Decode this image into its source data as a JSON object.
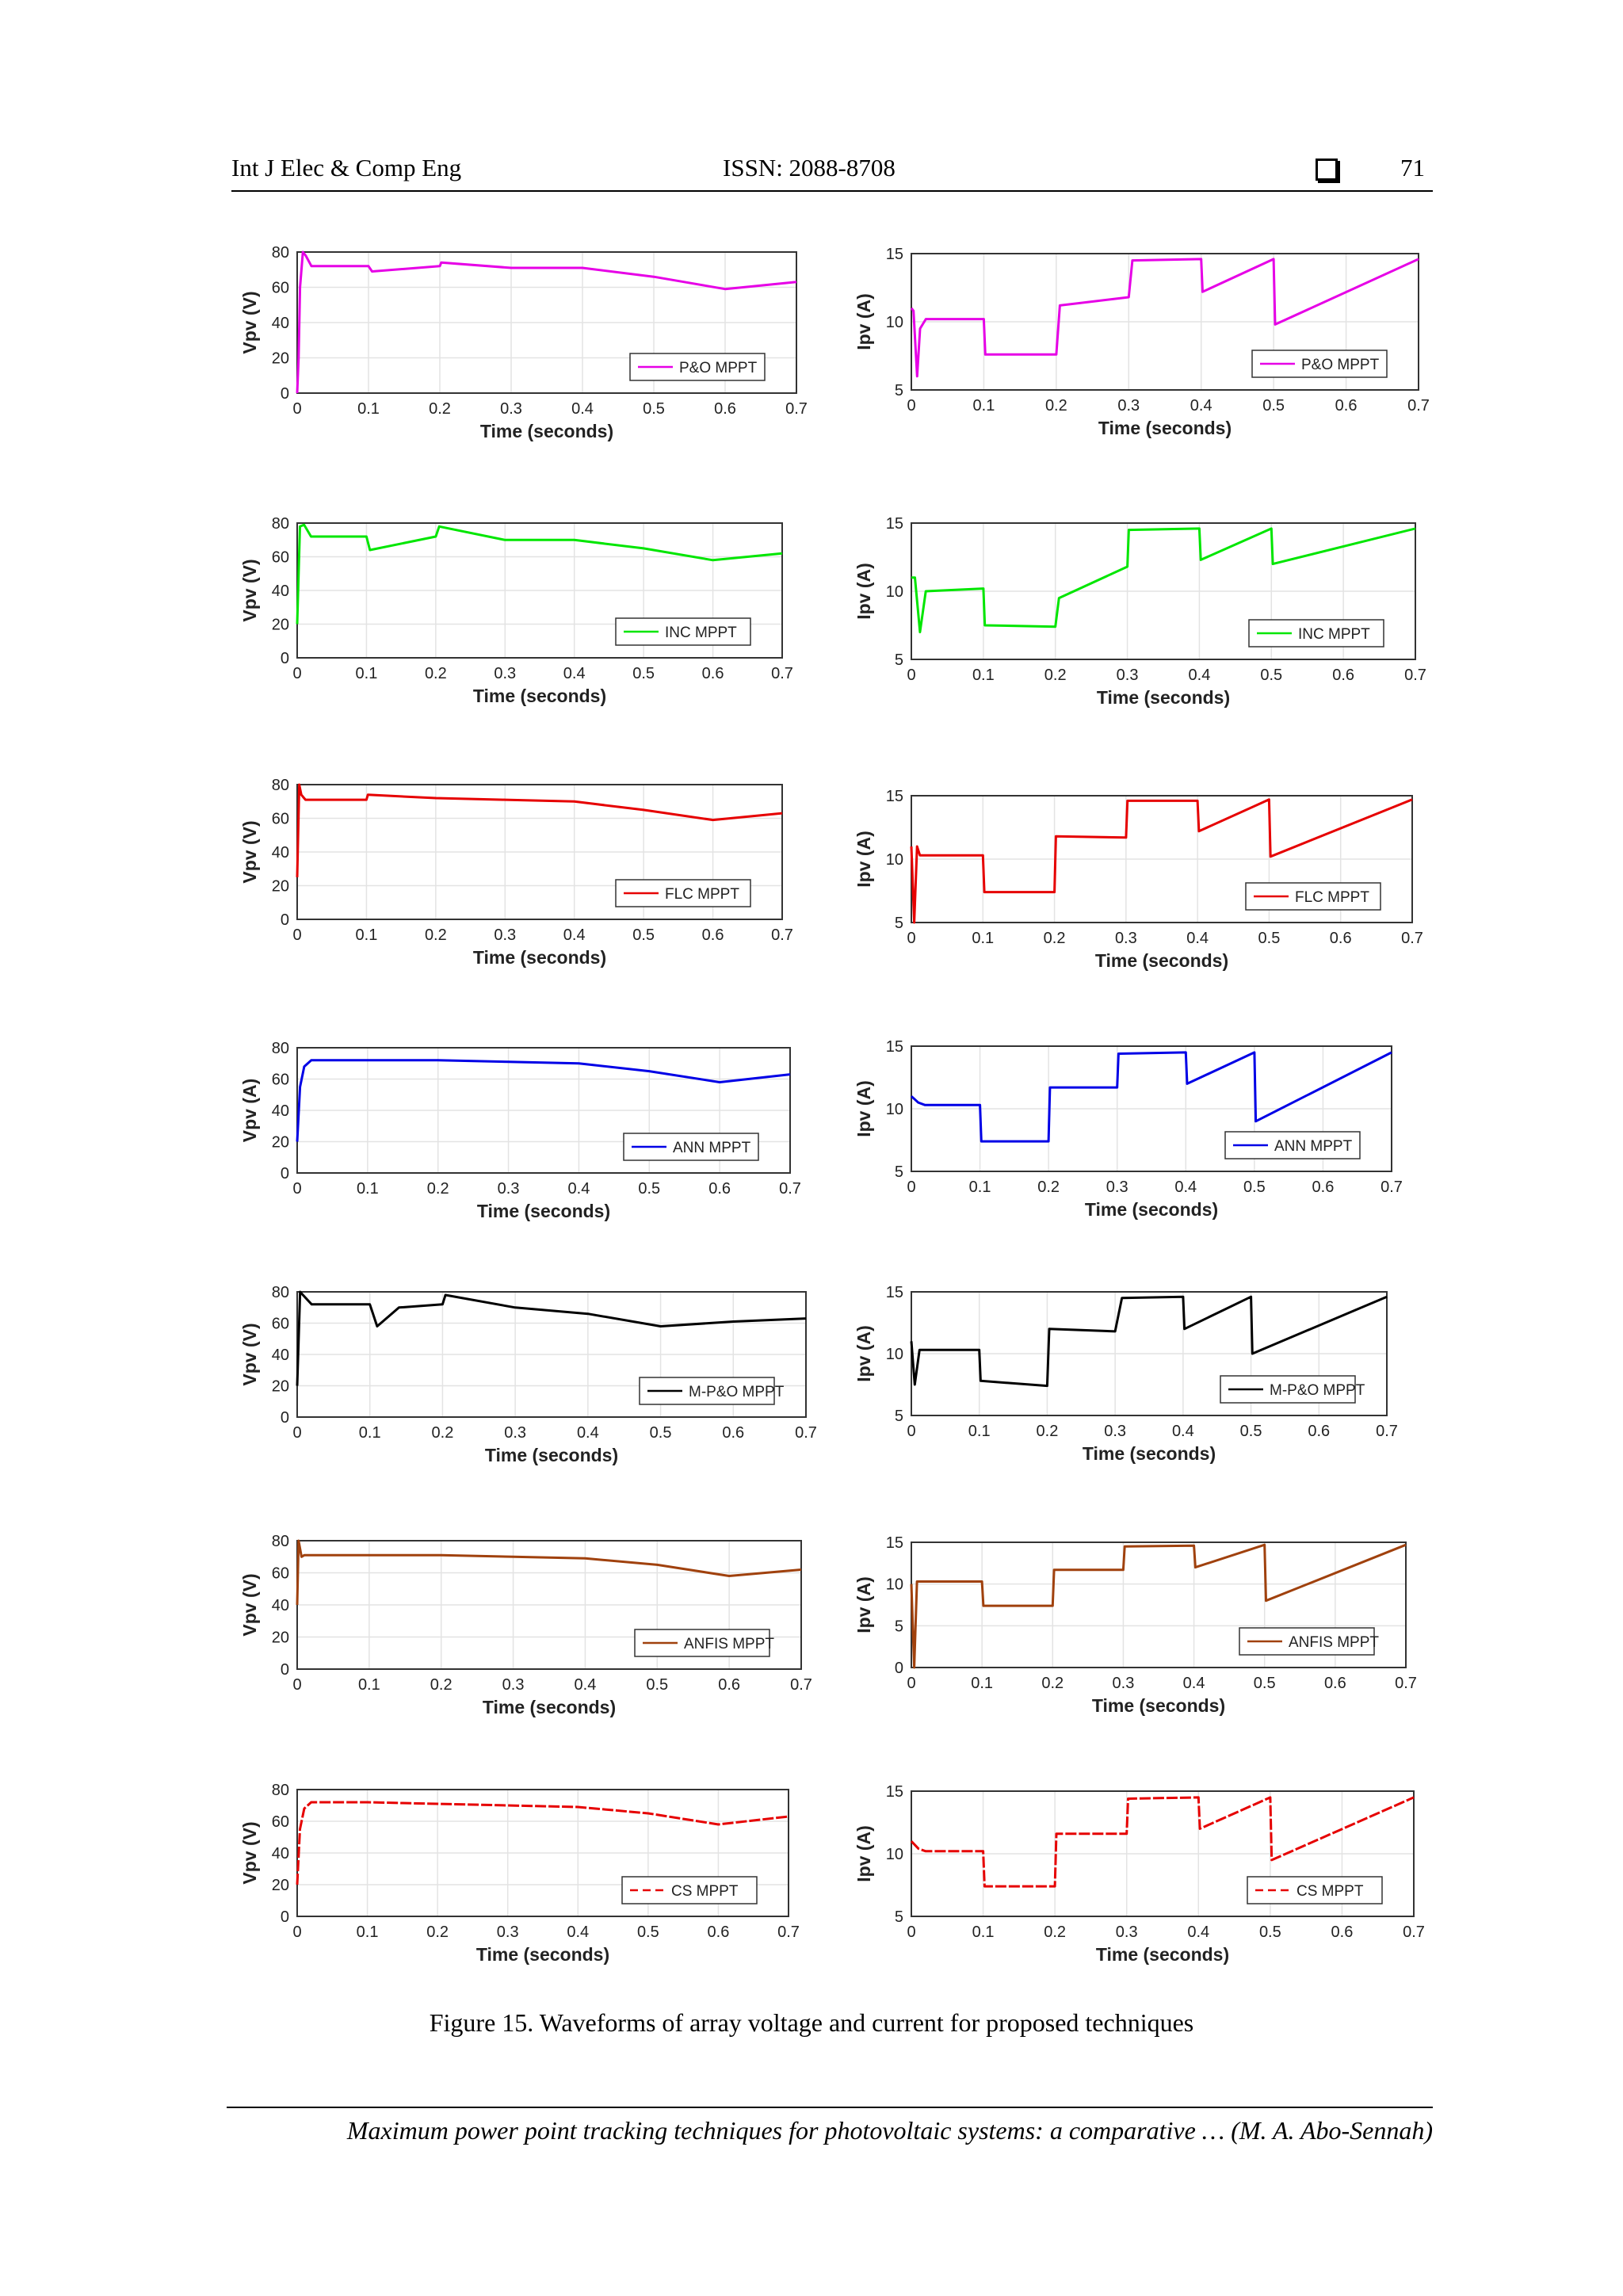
{
  "header": {
    "journal": "Int J Elec & Comp Eng",
    "issn": "ISSN: 2088-8708",
    "page_number": "71"
  },
  "caption": "Figure 15. Waveforms of array voltage and current for proposed techniques",
  "footer": "Maximum power point tracking techniques for photovoltaic systems: a comparative … (M. A. Abo-Sennah)",
  "chart_data": [
    {
      "type": "line",
      "method": "P&O",
      "quantity": "voltage",
      "color": "#e600e6",
      "ylabel": "Vpv (V)",
      "xlabel": "Time (seconds)",
      "xlim": [
        0,
        0.7
      ],
      "ylim": [
        0,
        80
      ],
      "xticks": [
        "0",
        "0.1",
        "0.2",
        "0.3",
        "0.4",
        "0.5",
        "0.6",
        "0.7"
      ],
      "yticks": [
        "0",
        "20",
        "40",
        "60",
        "80"
      ],
      "legend": "P&O MPPT",
      "legend_position": "bottom-right",
      "grid": true,
      "series": [
        {
          "name": "P&O MPPT",
          "x": [
            0,
            0.002,
            0.004,
            0.008,
            0.012,
            0.02,
            0.1,
            0.105,
            0.2,
            0.202,
            0.3,
            0.4,
            0.5,
            0.6,
            0.7
          ],
          "y": [
            0,
            20,
            60,
            80,
            78,
            72,
            72,
            69,
            72,
            74,
            71,
            71,
            66,
            59,
            63
          ]
        }
      ]
    },
    {
      "type": "line",
      "method": "P&O",
      "quantity": "current",
      "color": "#e600e6",
      "ylabel": "Ipv (A)",
      "xlabel": "Time (seconds)",
      "xlim": [
        0,
        0.7
      ],
      "ylim": [
        5,
        15
      ],
      "xticks": [
        "0",
        "0.1",
        "0.2",
        "0.3",
        "0.4",
        "0.5",
        "0.6",
        "0.7"
      ],
      "yticks": [
        "5",
        "10",
        "15"
      ],
      "legend": "P&O MPPT",
      "legend_position": "bottom-right",
      "grid": true,
      "series": [
        {
          "name": "P&O MPPT",
          "x": [
            0,
            0.003,
            0.008,
            0.012,
            0.02,
            0.1,
            0.102,
            0.2,
            0.205,
            0.3,
            0.305,
            0.4,
            0.402,
            0.5,
            0.502,
            0.7
          ],
          "y": [
            11,
            10.8,
            6,
            9.5,
            10.2,
            10.2,
            7.6,
            7.6,
            11.2,
            11.8,
            14.5,
            14.6,
            12.2,
            14.6,
            9.8,
            14.6
          ]
        }
      ]
    },
    {
      "type": "line",
      "method": "INC",
      "quantity": "voltage",
      "color": "#00e600",
      "ylabel": "Vpv (V)",
      "xlabel": "Time (seconds)",
      "xlim": [
        0,
        0.7
      ],
      "ylim": [
        0,
        80
      ],
      "xticks": [
        "0",
        "0.1",
        "0.2",
        "0.3",
        "0.4",
        "0.5",
        "0.6",
        "0.7"
      ],
      "yticks": [
        "0",
        "20",
        "40",
        "60",
        "80"
      ],
      "legend": "INC MPPT",
      "legend_position": "bottom-right",
      "grid": true,
      "series": [
        {
          "name": "INC MPPT",
          "x": [
            0,
            0.004,
            0.01,
            0.02,
            0.1,
            0.105,
            0.2,
            0.205,
            0.3,
            0.4,
            0.5,
            0.6,
            0.7
          ],
          "y": [
            20,
            78,
            79,
            72,
            72,
            64,
            72,
            78,
            70,
            70,
            65,
            58,
            62
          ]
        }
      ]
    },
    {
      "type": "line",
      "method": "INC",
      "quantity": "current",
      "color": "#00e600",
      "ylabel": "Ipv (A)",
      "xlabel": "Time (seconds)",
      "xlim": [
        0,
        0.7
      ],
      "ylim": [
        5,
        15
      ],
      "xticks": [
        "0",
        "0.1",
        "0.2",
        "0.3",
        "0.4",
        "0.5",
        "0.6",
        "0.7"
      ],
      "yticks": [
        "5",
        "10",
        "15"
      ],
      "legend": "INC MPPT",
      "legend_position": "bottom-right",
      "grid": true,
      "series": [
        {
          "name": "INC MPPT",
          "x": [
            0,
            0.005,
            0.012,
            0.02,
            0.1,
            0.102,
            0.2,
            0.205,
            0.3,
            0.302,
            0.4,
            0.402,
            0.5,
            0.502,
            0.7
          ],
          "y": [
            11,
            11,
            7,
            10,
            10.2,
            7.5,
            7.4,
            9.5,
            11.8,
            14.5,
            14.6,
            12.3,
            14.6,
            12,
            14.6
          ]
        }
      ]
    },
    {
      "type": "line",
      "method": "FLC",
      "quantity": "voltage",
      "color": "#e60000",
      "ylabel": "Vpv (V)",
      "xlabel": "Time (seconds)",
      "xlim": [
        0,
        0.7
      ],
      "ylim": [
        0,
        80
      ],
      "xticks": [
        "0",
        "0.1",
        "0.2",
        "0.3",
        "0.4",
        "0.5",
        "0.6",
        "0.7"
      ],
      "yticks": [
        "0",
        "20",
        "40",
        "60",
        "80"
      ],
      "legend": "FLC MPPT",
      "legend_position": "bottom-right",
      "grid": true,
      "series": [
        {
          "name": "FLC MPPT",
          "x": [
            0,
            0.003,
            0.006,
            0.012,
            0.02,
            0.1,
            0.102,
            0.2,
            0.3,
            0.4,
            0.5,
            0.6,
            0.7
          ],
          "y": [
            25,
            80,
            74,
            71,
            71,
            71,
            74,
            72,
            71,
            70,
            65,
            59,
            63
          ]
        }
      ]
    },
    {
      "type": "line",
      "method": "FLC",
      "quantity": "current",
      "color": "#e60000",
      "ylabel": "Ipv (A)",
      "xlabel": "Time (seconds)",
      "xlim": [
        0,
        0.7
      ],
      "ylim": [
        5,
        15
      ],
      "xticks": [
        "0",
        "0.1",
        "0.2",
        "0.3",
        "0.4",
        "0.5",
        "0.6",
        "0.7"
      ],
      "yticks": [
        "5",
        "10",
        "15"
      ],
      "legend": "FLC MPPT",
      "legend_position": "bottom-right",
      "grid": true,
      "series": [
        {
          "name": "FLC MPPT",
          "x": [
            0,
            0.004,
            0.008,
            0.012,
            0.1,
            0.102,
            0.2,
            0.202,
            0.3,
            0.302,
            0.4,
            0.402,
            0.5,
            0.502,
            0.7
          ],
          "y": [
            11,
            5,
            11,
            10.3,
            10.3,
            7.4,
            7.4,
            11.8,
            11.7,
            14.6,
            14.6,
            12.2,
            14.7,
            10.2,
            14.7
          ]
        }
      ]
    },
    {
      "type": "line",
      "method": "ANN",
      "quantity": "voltage",
      "color": "#0000e6",
      "ylabel": "Vpv (A)",
      "xlabel": "Time (seconds)",
      "xlim": [
        0,
        0.7
      ],
      "ylim": [
        0,
        80
      ],
      "xticks": [
        "0",
        "0.1",
        "0.2",
        "0.3",
        "0.4",
        "0.5",
        "0.6",
        "0.7"
      ],
      "yticks": [
        "0",
        "20",
        "40",
        "60",
        "80"
      ],
      "legend": "ANN MPPT",
      "legend_position": "bottom-right",
      "grid": true,
      "series": [
        {
          "name": "ANN MPPT",
          "x": [
            0,
            0.004,
            0.01,
            0.02,
            0.1,
            0.2,
            0.3,
            0.4,
            0.5,
            0.6,
            0.7
          ],
          "y": [
            20,
            55,
            68,
            72,
            72,
            72,
            71,
            70,
            65,
            58,
            63
          ]
        }
      ]
    },
    {
      "type": "line",
      "method": "ANN",
      "quantity": "current",
      "color": "#0000e6",
      "ylabel": "Ipv (A)",
      "xlabel": "Time (seconds)",
      "xlim": [
        0,
        0.7
      ],
      "ylim": [
        5,
        15
      ],
      "xticks": [
        "0",
        "0.1",
        "0.2",
        "0.3",
        "0.4",
        "0.5",
        "0.6",
        "0.7"
      ],
      "yticks": [
        "5",
        "10",
        "15"
      ],
      "legend": "ANN MPPT",
      "legend_position": "bottom-right",
      "grid": true,
      "series": [
        {
          "name": "ANN MPPT",
          "x": [
            0,
            0.01,
            0.02,
            0.1,
            0.102,
            0.2,
            0.202,
            0.3,
            0.302,
            0.4,
            0.402,
            0.5,
            0.502,
            0.7
          ],
          "y": [
            11,
            10.5,
            10.3,
            10.3,
            7.4,
            7.4,
            11.7,
            11.7,
            14.4,
            14.5,
            12,
            14.5,
            9,
            14.5
          ]
        }
      ]
    },
    {
      "type": "line",
      "method": "M-P&O",
      "quantity": "voltage",
      "color": "#000000",
      "ylabel": "Vpv (V)",
      "xlabel": "Time (seconds)",
      "xlim": [
        0,
        0.7
      ],
      "ylim": [
        0,
        80
      ],
      "xticks": [
        "0",
        "0.1",
        "0.2",
        "0.3",
        "0.4",
        "0.5",
        "0.6",
        "0.7"
      ],
      "yticks": [
        "0",
        "20",
        "40",
        "60",
        "80"
      ],
      "legend": "M-P&O MPPT",
      "legend_position": "bottom-right",
      "grid": true,
      "series": [
        {
          "name": "M-P&O MPPT",
          "x": [
            0,
            0.004,
            0.008,
            0.02,
            0.1,
            0.11,
            0.14,
            0.2,
            0.204,
            0.3,
            0.4,
            0.5,
            0.6,
            0.7
          ],
          "y": [
            20,
            80,
            78,
            72,
            72,
            58,
            70,
            72,
            78,
            70,
            66,
            58,
            61,
            63
          ]
        }
      ]
    },
    {
      "type": "line",
      "method": "M-P&O",
      "quantity": "current",
      "color": "#000000",
      "ylabel": "Ipv (A)",
      "xlabel": "Time (seconds)",
      "xlim": [
        0,
        0.7
      ],
      "ylim": [
        5,
        15
      ],
      "xticks": [
        "0",
        "0.1",
        "0.2",
        "0.3",
        "0.4",
        "0.5",
        "0.6",
        "0.7"
      ],
      "yticks": [
        "5",
        "10",
        "15"
      ],
      "legend": "M-P&O MPPT",
      "legend_position": "bottom-right",
      "grid": true,
      "series": [
        {
          "name": "M-P&O MPPT",
          "x": [
            0,
            0.005,
            0.012,
            0.02,
            0.1,
            0.102,
            0.2,
            0.203,
            0.3,
            0.31,
            0.4,
            0.402,
            0.5,
            0.502,
            0.7
          ],
          "y": [
            11,
            7.5,
            10.3,
            10.3,
            10.3,
            7.8,
            7.4,
            12,
            11.8,
            14.5,
            14.6,
            12,
            14.6,
            10,
            14.6
          ]
        }
      ]
    },
    {
      "type": "line",
      "method": "ANFIS",
      "quantity": "voltage",
      "color": "#a0410d",
      "ylabel": "Vpv (V)",
      "xlabel": "Time (seconds)",
      "xlim": [
        0,
        0.7
      ],
      "ylim": [
        0,
        80
      ],
      "xticks": [
        "0",
        "0.1",
        "0.2",
        "0.3",
        "0.4",
        "0.5",
        "0.6",
        "0.7"
      ],
      "yticks": [
        "0",
        "20",
        "40",
        "60",
        "80"
      ],
      "legend": "ANFIS MPPT",
      "legend_position": "bottom-right",
      "grid": true,
      "series": [
        {
          "name": "ANFIS MPPT",
          "x": [
            0,
            0.002,
            0.006,
            0.01,
            0.1,
            0.2,
            0.3,
            0.4,
            0.5,
            0.6,
            0.7
          ],
          "y": [
            40,
            80,
            70,
            71,
            71,
            71,
            70,
            69,
            65,
            58,
            62
          ]
        }
      ]
    },
    {
      "type": "line",
      "method": "ANFIS",
      "quantity": "current",
      "color": "#a0410d",
      "ylabel": "Ipv (A)",
      "xlabel": "Time (seconds)",
      "xlim": [
        0,
        0.7
      ],
      "ylim": [
        0,
        15
      ],
      "xticks": [
        "0",
        "0.1",
        "0.2",
        "0.3",
        "0.4",
        "0.5",
        "0.6",
        "0.7"
      ],
      "yticks": [
        "0",
        "5",
        "10",
        "15"
      ],
      "legend": "ANFIS MPPT",
      "legend_position": "bottom-right",
      "grid": true,
      "series": [
        {
          "name": "ANFIS MPPT",
          "x": [
            0,
            0.004,
            0.008,
            0.01,
            0.1,
            0.102,
            0.2,
            0.202,
            0.3,
            0.302,
            0.4,
            0.402,
            0.5,
            0.502,
            0.7
          ],
          "y": [
            10,
            0,
            10.3,
            10.3,
            10.3,
            7.4,
            7.4,
            11.7,
            11.7,
            14.5,
            14.6,
            12,
            14.7,
            8,
            14.7
          ]
        }
      ]
    },
    {
      "type": "line",
      "method": "CS",
      "quantity": "voltage",
      "color": "#e60000",
      "ylabel": "Vpv (V)",
      "xlabel": "Time (seconds)",
      "xlim": [
        0,
        0.7
      ],
      "ylim": [
        0,
        80
      ],
      "xticks": [
        "0",
        "0.1",
        "0.2",
        "0.3",
        "0.4",
        "0.5",
        "0.6",
        "0.7"
      ],
      "yticks": [
        "0",
        "20",
        "40",
        "60",
        "80"
      ],
      "legend": "CS MPPT",
      "legend_position": "bottom-right",
      "grid": true,
      "series": [
        {
          "name": "CS MPPT",
          "x": [
            0,
            0.004,
            0.01,
            0.02,
            0.1,
            0.2,
            0.3,
            0.4,
            0.5,
            0.6,
            0.7
          ],
          "y": [
            20,
            55,
            68,
            72,
            72,
            71,
            70,
            69,
            65,
            58,
            63
          ]
        }
      ]
    },
    {
      "type": "line",
      "method": "CS",
      "quantity": "current",
      "color": "#e60000",
      "ylabel": "Ipv (A)",
      "xlabel": "Time (seconds)",
      "xlim": [
        0,
        0.7
      ],
      "ylim": [
        5,
        15
      ],
      "xticks": [
        "0",
        "0.1",
        "0.2",
        "0.3",
        "0.4",
        "0.5",
        "0.6",
        "0.7"
      ],
      "yticks": [
        "5",
        "10",
        "15"
      ],
      "legend": "CS MPPT",
      "legend_position": "bottom-right",
      "grid": true,
      "series": [
        {
          "name": "CS MPPT",
          "x": [
            0,
            0.01,
            0.02,
            0.1,
            0.102,
            0.2,
            0.202,
            0.3,
            0.302,
            0.4,
            0.402,
            0.5,
            0.502,
            0.7
          ],
          "y": [
            11,
            10.4,
            10.2,
            10.2,
            7.4,
            7.4,
            11.6,
            11.6,
            14.4,
            14.5,
            12,
            14.5,
            9.5,
            14.5
          ]
        }
      ]
    }
  ]
}
